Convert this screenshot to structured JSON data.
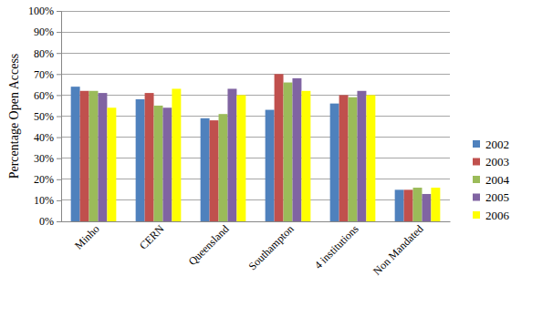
{
  "chart_data": {
    "type": "bar",
    "y_label": "Percentage Open Access",
    "categories": [
      "Minho",
      "CERN",
      "Queensland",
      "Southampton",
      "4 institutions",
      "Non Mandated"
    ],
    "series": [
      {
        "name": "2002",
        "color": "#4f81bd",
        "values": [
          64,
          58,
          49,
          53,
          56,
          15
        ]
      },
      {
        "name": "2003",
        "color": "#c0504d",
        "values": [
          62,
          61,
          48,
          70,
          60,
          15
        ]
      },
      {
        "name": "2004",
        "color": "#9bbb59",
        "values": [
          62,
          55,
          51,
          66,
          59,
          16
        ]
      },
      {
        "name": "2005",
        "color": "#8064a2",
        "values": [
          61,
          54,
          63,
          68,
          62,
          13
        ]
      },
      {
        "name": "2006",
        "color": "#ffff00",
        "values": [
          54,
          63,
          60,
          62,
          60,
          16
        ]
      }
    ],
    "ylim": [
      0,
      100
    ],
    "yticks": [
      {
        "value": 0,
        "label": "0%"
      },
      {
        "value": 10,
        "label": "10%"
      },
      {
        "value": 20,
        "label": "20%"
      },
      {
        "value": 30,
        "label": "30%"
      },
      {
        "value": 40,
        "label": "40%"
      },
      {
        "value": 50,
        "label": "50%"
      },
      {
        "value": 60,
        "label": "60%"
      },
      {
        "value": 70,
        "label": "70%"
      },
      {
        "value": 80,
        "label": "80%"
      },
      {
        "value": 90,
        "label": "90%"
      },
      {
        "value": 100,
        "label": "100%"
      }
    ],
    "grid": true,
    "legend": "right"
  }
}
